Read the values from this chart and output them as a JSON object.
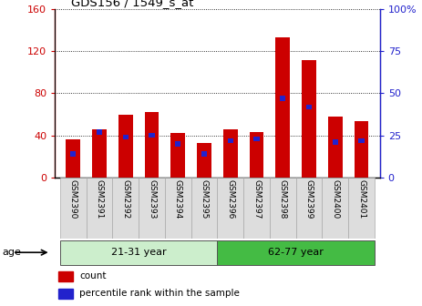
{
  "title": "GDS156 / 1549_s_at",
  "categories": [
    "GSM2390",
    "GSM2391",
    "GSM2392",
    "GSM2393",
    "GSM2394",
    "GSM2395",
    "GSM2396",
    "GSM2397",
    "GSM2398",
    "GSM2399",
    "GSM2400",
    "GSM2401"
  ],
  "count_values": [
    36,
    46,
    60,
    62,
    42,
    33,
    46,
    43,
    133,
    112,
    58,
    54
  ],
  "percentile_values": [
    14,
    27,
    24,
    25,
    20,
    14,
    22,
    23,
    47,
    42,
    21,
    22
  ],
  "bar_color": "#cc0000",
  "percentile_color": "#2222cc",
  "ylim_left": [
    0,
    160
  ],
  "ylim_right": [
    0,
    100
  ],
  "yticks_left": [
    0,
    40,
    80,
    120,
    160
  ],
  "yticks_right": [
    0,
    25,
    50,
    75,
    100
  ],
  "ytick_labels_left": [
    "0",
    "40",
    "80",
    "120",
    "160"
  ],
  "ytick_labels_right": [
    "0",
    "25",
    "50",
    "75",
    "100%"
  ],
  "age_groups": [
    {
      "label": "21-31 year",
      "start": 0,
      "end": 5,
      "color": "#cceecc"
    },
    {
      "label": "62-77 year",
      "start": 6,
      "end": 11,
      "color": "#44bb44"
    }
  ],
  "age_label": "age",
  "legend_items": [
    {
      "label": "count",
      "color": "#cc0000"
    },
    {
      "label": "percentile rank within the sample",
      "color": "#2222cc"
    }
  ],
  "bar_width": 0.55,
  "bg_color": "#ffffff",
  "tick_label_color_left": "#cc0000",
  "tick_label_color_right": "#2222cc",
  "xtick_bg_color": "#dddddd",
  "xtick_border_color": "#aaaaaa"
}
